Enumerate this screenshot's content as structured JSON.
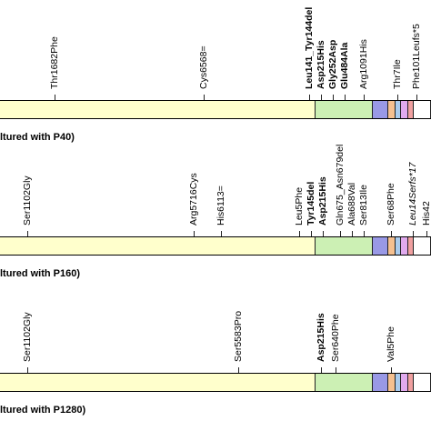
{
  "colors": {
    "genome_main": "#ffffcc",
    "genome_second": "#ccf0b4",
    "segments": [
      "#9999e6",
      "#f5c090",
      "#aaccee",
      "#e0aaee",
      "#f0a0a0",
      "#ffffff"
    ]
  },
  "panels": [
    {
      "caption": "ltured with P40)",
      "mutations": [
        {
          "label": "Thr1682Phe",
          "style": "normal"
        },
        {
          "label": "Cys6568=",
          "style": "normal"
        },
        {
          "label": "Leu141_Tyr144del",
          "style": "bold"
        },
        {
          "label": "Asp215His",
          "style": "bold"
        },
        {
          "label": "Gly252Asp",
          "style": "bold"
        },
        {
          "label": "Glu484Ala",
          "style": "bold"
        },
        {
          "label": "Arg1091His",
          "style": "normal"
        },
        {
          "label": "Thr7Ile",
          "style": "normal"
        },
        {
          "label": "Phe101Leufs*5",
          "style": "normal"
        }
      ]
    },
    {
      "caption": "ltured with P160)",
      "mutations": [
        {
          "label": "Ser1102Gly",
          "style": "normal"
        },
        {
          "label": "Arg5716Cys",
          "style": "normal"
        },
        {
          "label": "His6113=",
          "style": "normal"
        },
        {
          "label": "Leu5Phe",
          "style": "normal"
        },
        {
          "label": "Tyr145del",
          "style": "bold"
        },
        {
          "label": "Asp215His",
          "style": "bold"
        },
        {
          "label": "Gln675_Asn679del",
          "style": "normal"
        },
        {
          "label": "Ala688Val",
          "style": "normal"
        },
        {
          "label": "Ser813Ile",
          "style": "normal"
        },
        {
          "label": "Ser68Phe",
          "style": "normal"
        },
        {
          "label": "Leu14Serfs*17",
          "style": "italic"
        },
        {
          "label": "His42",
          "style": "normal"
        }
      ]
    },
    {
      "caption": "ltured with P1280)",
      "mutations": [
        {
          "label": "Ser1102Gly",
          "style": "normal"
        },
        {
          "label": "Ser5583Pro",
          "style": "normal"
        },
        {
          "label": "Asp215His",
          "style": "bold"
        },
        {
          "label": "Ser640Phe",
          "style": "normal"
        },
        {
          "label": "Val5Phe",
          "style": "normal"
        }
      ]
    }
  ]
}
